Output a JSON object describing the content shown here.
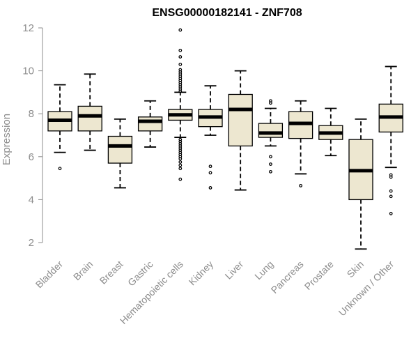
{
  "chart_data": {
    "type": "boxplot",
    "title": "ENSG00000182141 - ZNF708",
    "ylabel": "Expression",
    "ylim": [
      1.5,
      12.2
    ],
    "yticks": [
      2,
      4,
      6,
      8,
      10,
      12
    ],
    "box_fill": "#ede7d0",
    "categories": [
      "Bladder",
      "Brain",
      "Breast",
      "Gastric",
      "Hematopoietic cells",
      "Kidney",
      "Liver",
      "Lung",
      "Pancreas",
      "Prostate",
      "Skin",
      "Unknown / Other"
    ],
    "boxes": [
      {
        "whisker_low": 6.2,
        "q1": 7.2,
        "median": 7.7,
        "q3": 8.1,
        "whisker_high": 9.35,
        "outliers": [
          5.45
        ]
      },
      {
        "whisker_low": 6.3,
        "q1": 7.2,
        "median": 7.9,
        "q3": 8.35,
        "whisker_high": 9.85,
        "outliers": []
      },
      {
        "whisker_low": 4.55,
        "q1": 5.7,
        "median": 6.5,
        "q3": 6.95,
        "whisker_high": 7.75,
        "outliers": []
      },
      {
        "whisker_low": 6.45,
        "q1": 7.2,
        "median": 7.65,
        "q3": 7.85,
        "whisker_high": 8.6,
        "outliers": []
      },
      {
        "whisker_low": 6.9,
        "q1": 7.7,
        "median": 7.95,
        "q3": 8.2,
        "whisker_high": 9.0,
        "outliers": [
          11.9,
          10.95,
          10.65,
          10.3,
          10.05,
          9.95,
          9.85,
          9.75,
          9.65,
          9.55,
          9.45,
          9.35,
          9.25,
          9.15,
          9.05,
          6.8,
          6.7,
          6.6,
          6.5,
          6.4,
          6.3,
          6.2,
          6.1,
          6.0,
          5.9,
          5.75,
          5.6,
          5.45,
          4.95
        ]
      },
      {
        "whisker_low": 7.0,
        "q1": 7.4,
        "median": 7.85,
        "q3": 8.2,
        "whisker_high": 9.3,
        "outliers": [
          5.55,
          5.25,
          4.55
        ]
      },
      {
        "whisker_low": 4.45,
        "q1": 6.5,
        "median": 8.2,
        "q3": 8.9,
        "whisker_high": 10.0,
        "outliers": []
      },
      {
        "whisker_low": 6.5,
        "q1": 6.9,
        "median": 7.1,
        "q3": 7.55,
        "whisker_high": 8.25,
        "outliers": [
          8.6,
          8.5,
          6.0,
          5.65,
          5.3
        ]
      },
      {
        "whisker_low": 5.2,
        "q1": 6.85,
        "median": 7.55,
        "q3": 8.1,
        "whisker_high": 8.6,
        "outliers": [
          4.65
        ]
      },
      {
        "whisker_low": 6.05,
        "q1": 6.8,
        "median": 7.1,
        "q3": 7.45,
        "whisker_high": 8.25,
        "outliers": []
      },
      {
        "whisker_low": 1.7,
        "q1": 4.0,
        "median": 5.35,
        "q3": 6.8,
        "whisker_high": 7.75,
        "outliers": []
      },
      {
        "whisker_low": 5.5,
        "q1": 7.15,
        "median": 7.85,
        "q3": 8.45,
        "whisker_high": 10.2,
        "outliers": [
          5.15,
          5.05,
          4.4,
          4.15,
          3.35
        ]
      }
    ]
  }
}
